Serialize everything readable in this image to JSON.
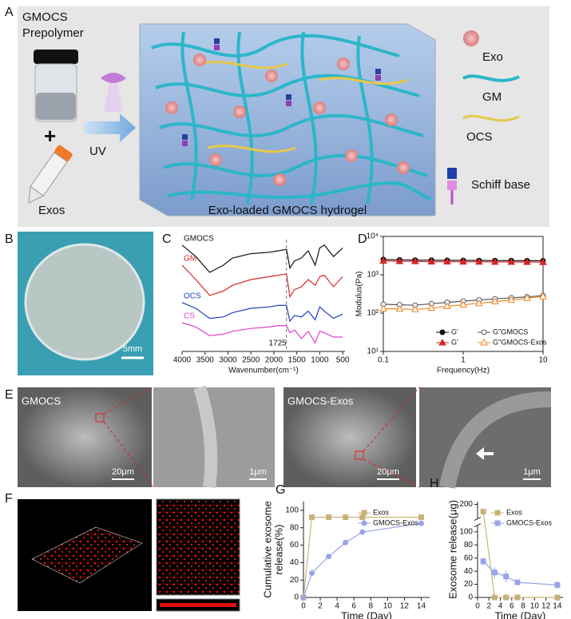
{
  "panel_labels": [
    "A",
    "B",
    "C",
    "D",
    "E",
    "F",
    "G",
    "H"
  ],
  "scheme": {
    "prepolymer": [
      "GMOCS",
      "Prepolymer"
    ],
    "plus": "+",
    "uv": "UV",
    "exos": "Exos",
    "hydrogel": "Exo-loaded GMOCS hydrogel",
    "legend": [
      "Exo",
      "GM",
      "OCS",
      "Schiff base"
    ]
  },
  "photo": {
    "scale_bar": "5mm"
  },
  "sem": {
    "labels": [
      "GMOCS",
      "GMOCS-Exos"
    ],
    "scale_bars": [
      "20μm",
      "1μm",
      "20μm",
      "1μm"
    ]
  },
  "chart_data": [
    {
      "type": "line",
      "frame": "bottom",
      "legend": "inline",
      "x_label": "Wavenumber(cm⁻¹)",
      "xlim": [
        4000,
        450
      ],
      "xticks": [
        4000,
        3500,
        3000,
        2500,
        2000,
        1500,
        1000,
        500
      ],
      "ylim": [
        0.3,
        4.3
      ],
      "x": [
        4000,
        3700,
        3400,
        3100,
        2900,
        2500,
        2100,
        1900,
        1725,
        1650,
        1550,
        1400,
        1250,
        1100,
        1000,
        900,
        700,
        500
      ],
      "series": [
        {
          "name": "GMOCS",
          "color": "#111111",
          "values": [
            4.0,
            3.6,
            3.05,
            3.3,
            3.55,
            3.7,
            3.75,
            3.8,
            3.85,
            3.2,
            3.45,
            3.55,
            3.8,
            3.3,
            3.9,
            4.0,
            3.6,
            3.9
          ]
        },
        {
          "name": "GM",
          "color": "#d62728",
          "values": [
            3.3,
            2.8,
            2.25,
            2.4,
            2.6,
            2.8,
            2.9,
            2.95,
            3.0,
            2.2,
            2.45,
            2.55,
            2.8,
            2.6,
            2.9,
            2.95,
            2.55,
            2.9
          ]
        },
        {
          "name": "OCS",
          "color": "#1f3fbf",
          "values": [
            2.0,
            1.8,
            1.45,
            1.5,
            1.65,
            1.8,
            1.85,
            1.9,
            1.9,
            1.35,
            1.55,
            1.5,
            1.7,
            1.4,
            1.85,
            1.7,
            1.45,
            1.6
          ]
        },
        {
          "name": "CS",
          "color": "#e040c8",
          "values": [
            1.3,
            1.15,
            0.85,
            0.9,
            1.0,
            1.1,
            1.15,
            1.2,
            1.2,
            0.95,
            1.05,
            0.75,
            1.0,
            0.6,
            1.0,
            0.95,
            0.8,
            0.8
          ]
        }
      ],
      "annotation": {
        "text": "1725",
        "x": 1725
      }
    },
    {
      "type": "line",
      "frame": "box",
      "legend": "bottom-right",
      "legend_columns": 2,
      "x_label": "Frequency(Hz)",
      "y_label": [
        "Modulus(Pa)"
      ],
      "xlog": true,
      "ylog": true,
      "xlim": [
        0.1,
        10
      ],
      "xticks": [
        0.1,
        1,
        10
      ],
      "ylim": [
        10,
        10000
      ],
      "yticks": [
        {
          "value": 10,
          "label": "10¹"
        },
        {
          "value": 100,
          "label": "10²"
        },
        {
          "value": 1000,
          "label": "10³"
        },
        {
          "value": 10000,
          "label": "10⁴"
        }
      ],
      "x": [
        0.1,
        0.16,
        0.25,
        0.4,
        0.63,
        1,
        1.58,
        2.5,
        4,
        6.3,
        10
      ],
      "series": [
        {
          "name": "G'",
          "color": "#111111",
          "marker": "circle",
          "filled": true,
          "values": [
            2500,
            2450,
            2420,
            2400,
            2380,
            2370,
            2360,
            2350,
            2340,
            2330,
            2320
          ]
        },
        {
          "name": "G''GMOCS",
          "color": "#555555",
          "marker": "circle",
          "filled": false,
          "values": [
            170,
            165,
            160,
            175,
            190,
            205,
            220,
            235,
            250,
            265,
            285
          ]
        },
        {
          "name": "G'",
          "color": "#d62728",
          "marker": "triangle",
          "filled": true,
          "values": [
            2300,
            2250,
            2230,
            2200,
            2190,
            2180,
            2170,
            2160,
            2150,
            2140,
            2130
          ]
        },
        {
          "name": "G''GMOCS-Exos",
          "color": "#f08a24",
          "marker": "triangle",
          "filled": false,
          "values": [
            130,
            128,
            125,
            135,
            150,
            165,
            180,
            200,
            220,
            245,
            270
          ]
        }
      ]
    },
    {
      "type": "line",
      "frame": "axes",
      "legend": "top-right",
      "legend_columns": 1,
      "x_label": "Time  (Day)",
      "y_label": [
        "Cumulative exosome",
        "release(%)"
      ],
      "xlim": [
        0,
        15
      ],
      "xticks": [
        0,
        2,
        4,
        6,
        8,
        10,
        12,
        14
      ],
      "ylim": [
        0,
        110
      ],
      "yticks": [
        0,
        20,
        40,
        60,
        80,
        100
      ],
      "x": [
        0,
        1,
        3,
        5,
        7,
        14
      ],
      "series": [
        {
          "name": "Exos",
          "color": "#c8b27a",
          "marker": "square",
          "filled": true,
          "values": [
            0,
            92,
            92,
            92,
            92,
            92
          ]
        },
        {
          "name": "GMOCS-Exos",
          "color": "#98a4ea",
          "marker": "circle",
          "filled": true,
          "values": [
            0,
            28,
            47,
            63,
            75,
            85
          ]
        }
      ]
    },
    {
      "type": "line",
      "frame": "axes",
      "legend": "top-right",
      "legend_columns": 1,
      "x_label": "Time  (Day)",
      "y_label": [
        "Exosome release(μg)"
      ],
      "xlim": [
        0,
        15
      ],
      "xticks": [
        0,
        2,
        4,
        6,
        8,
        10,
        12,
        14
      ],
      "ylim": [
        0,
        210
      ],
      "y_break": [
        110,
        150
      ],
      "yticks": [
        0,
        20,
        40,
        60,
        80,
        100,
        200
      ],
      "x": [
        1,
        3,
        5,
        7,
        14
      ],
      "series": [
        {
          "name": "Exos",
          "color": "#c8b27a",
          "marker": "square",
          "filled": true,
          "values": [
            175,
            0,
            0,
            0,
            0
          ]
        },
        {
          "name": "GMOCS-Exos",
          "color": "#98a4ea",
          "marker": "square",
          "filled": true,
          "values": [
            55,
            38,
            32,
            23,
            19
          ],
          "errors": [
            6,
            8,
            9,
            4,
            6
          ]
        }
      ]
    }
  ]
}
